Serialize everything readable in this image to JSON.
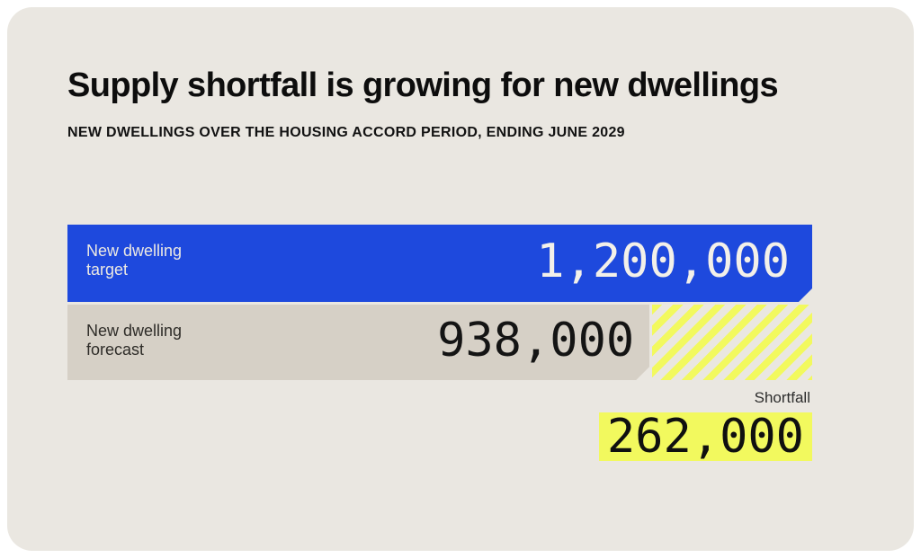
{
  "header": {
    "title": "Supply shortfall is growing for new dwellings",
    "subtitle": "NEW DWELLINGS OVER THE HOUSING ACCORD PERIOD, ENDING JUNE 2029"
  },
  "chart": {
    "target": {
      "label_lines": [
        "New dwelling",
        "target"
      ],
      "value_label": "1,200,000"
    },
    "forecast": {
      "label_lines": [
        "New dwelling",
        "forecast"
      ],
      "value_label": "938,000"
    },
    "shortfall": {
      "label": "Shortfall",
      "value_label": "262,000"
    }
  },
  "colors": {
    "page-bg": "#ffffff",
    "card-bg": "#eae7e1",
    "blue": "#1e49dd",
    "taupe": "#d6d0c6",
    "yellow": "#f2f95e",
    "ink": "#0d0d0d",
    "ink-soft": "#2e2c28",
    "light-text": "#ece9e2"
  },
  "chart_data": {
    "type": "bar",
    "orientation": "horizontal",
    "title": "Supply shortfall is growing for new dwellings",
    "subtitle": "NEW DWELLINGS OVER THE HOUSING ACCORD PERIOD, ENDING JUNE 2029",
    "categories": [
      "New dwelling target",
      "New dwelling forecast"
    ],
    "values": [
      1200000,
      938000
    ],
    "value_labels": [
      "1,200,000",
      "938,000"
    ],
    "annotations": [
      {
        "label": "Shortfall",
        "value": 262000,
        "value_label": "262,000",
        "style": "yellow-diagonal-hatch"
      }
    ],
    "xlim": [
      0,
      1200000
    ],
    "grid": false,
    "legend": false
  }
}
